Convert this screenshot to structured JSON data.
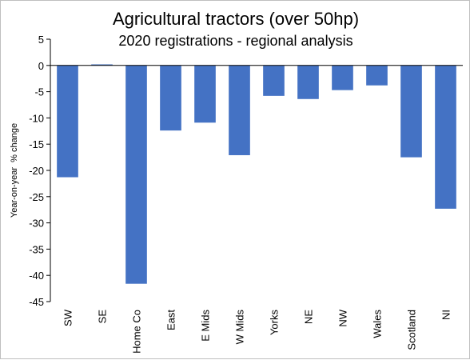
{
  "chart_data": {
    "type": "bar",
    "title": "Agricultural tractors (over 50hp)",
    "subtitle": "2020 registrations - regional analysis",
    "ylabel": "Year-on-year  % change",
    "xlabel": "",
    "categories": [
      "SW",
      "SE",
      "Home Co",
      "East",
      "E Mids",
      "W Mids",
      "Yorks",
      "NE",
      "NW",
      "Wales",
      "Scotland",
      "NI"
    ],
    "values": [
      -21.3,
      0.2,
      -41.6,
      -12.4,
      -10.9,
      -17.1,
      -5.8,
      -6.4,
      -4.7,
      -3.8,
      -17.5,
      -27.3
    ],
    "ylim": [
      -45,
      5
    ],
    "yticks": [
      5,
      0,
      -5,
      -10,
      -15,
      -20,
      -25,
      -30,
      -35,
      -40,
      -45
    ],
    "grid": false,
    "legend": "none",
    "colors": {
      "bar": "#4472c4",
      "axis": "#000000"
    }
  }
}
